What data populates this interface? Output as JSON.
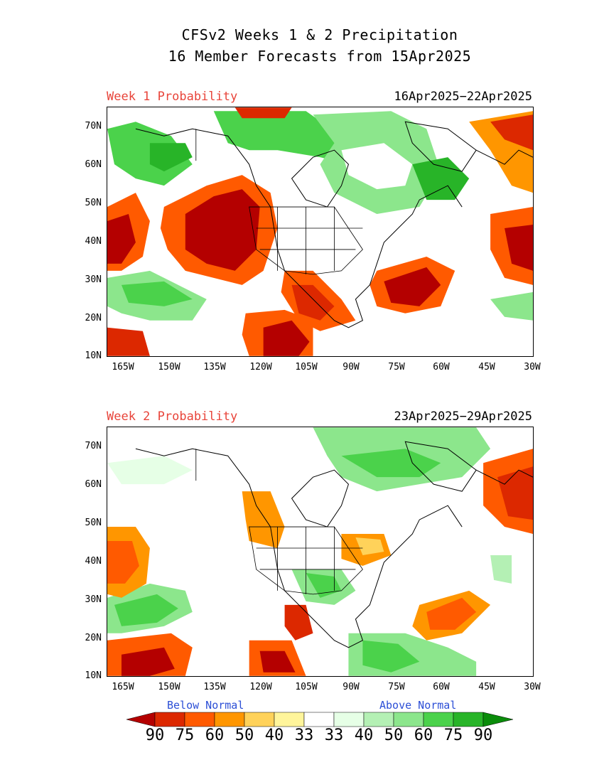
{
  "header": {
    "title_line1": "CFSv2 Weeks 1 & 2 Precipitation",
    "title_line2": "16 Member Forecasts from 15Apr2025"
  },
  "panels": [
    {
      "label": "Week 1 Probability",
      "dates": "16Apr2025−22Apr2025"
    },
    {
      "label": "Week 2 Probability",
      "dates": "23Apr2025−29Apr2025"
    }
  ],
  "axes": {
    "lat_labels": [
      "70N",
      "60N",
      "50N",
      "40N",
      "30N",
      "20N",
      "10N"
    ],
    "lon_labels": [
      "165W",
      "150W",
      "135W",
      "120W",
      "105W",
      "90W",
      "75W",
      "60W",
      "45W",
      "30W"
    ]
  },
  "legend": {
    "below_label": "Below Normal",
    "above_label": "Above Normal",
    "numbers": [
      "90",
      "75",
      "60",
      "50",
      "40",
      "33",
      "33",
      "40",
      "50",
      "60",
      "75",
      "90"
    ],
    "colors": [
      "#b40000",
      "#dc2800",
      "#ff5a00",
      "#ff9600",
      "#ffd25a",
      "#fff59b",
      "#ffffff",
      "#e6ffe6",
      "#b4f0b4",
      "#8ce68c",
      "#4bd24b",
      "#28b428",
      "#0a8c0a"
    ]
  },
  "palette": {
    "brown_dark": "#b40000",
    "red": "#dc2800",
    "orange_red": "#ff5a00",
    "orange": "#ff9600",
    "yellow": "#ffd25a",
    "pale_yellow": "#fff59b",
    "pale_green": "#e6ffe6",
    "light_green": "#b4f0b4",
    "mid_green": "#8ce68c",
    "green": "#4bd24b",
    "dark_green": "#28b428"
  }
}
